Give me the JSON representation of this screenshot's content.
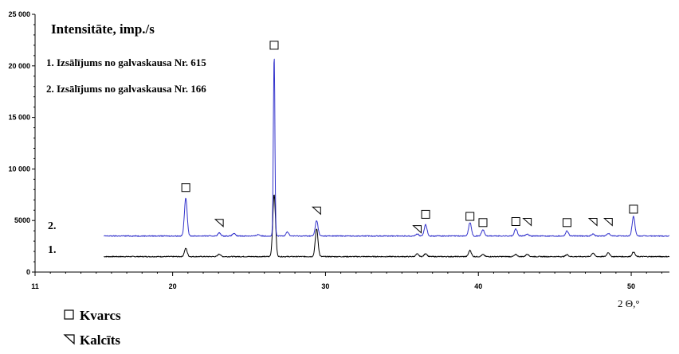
{
  "chart_data": {
    "type": "line",
    "title": "",
    "ylabel": "Intensitāte, imp./s",
    "xlabel": "2 Θ,°",
    "xlim": [
      11,
      52.5
    ],
    "ylim": [
      0,
      25000
    ],
    "x_ticks": [
      11,
      20,
      30,
      40,
      50
    ],
    "y_ticks": [
      0,
      5000,
      10000,
      15000,
      20000,
      25000
    ],
    "y_tick_labels": [
      "0",
      "5000",
      "10 000",
      "15 000",
      "20 000",
      "25 000"
    ],
    "grid": false,
    "sample_labels": [
      "1. Izsālījums no galvaskausa Nr. 615",
      "2. Izsālījums no galvaskausa Nr. 166"
    ],
    "series": [
      {
        "name": "1.",
        "color": "#000000",
        "baseline": 1500,
        "peaks": [
          {
            "x": 20.86,
            "y": 2300
          },
          {
            "x": 23.05,
            "y": 1750
          },
          {
            "x": 26.64,
            "y": 7500
          },
          {
            "x": 29.42,
            "y": 4200
          },
          {
            "x": 36.0,
            "y": 1750
          },
          {
            "x": 36.55,
            "y": 1800
          },
          {
            "x": 39.45,
            "y": 2100
          },
          {
            "x": 40.3,
            "y": 1700
          },
          {
            "x": 42.45,
            "y": 1700
          },
          {
            "x": 43.2,
            "y": 1750
          },
          {
            "x": 45.8,
            "y": 1700
          },
          {
            "x": 47.5,
            "y": 1850
          },
          {
            "x": 48.5,
            "y": 1900
          },
          {
            "x": 50.15,
            "y": 1950
          }
        ]
      },
      {
        "name": "2.",
        "color": "#3333cc",
        "baseline": 3500,
        "peaks": [
          {
            "x": 20.86,
            "y": 7200
          },
          {
            "x": 23.05,
            "y": 3800
          },
          {
            "x": 24.0,
            "y": 3750
          },
          {
            "x": 25.6,
            "y": 3650
          },
          {
            "x": 26.64,
            "y": 21000
          },
          {
            "x": 27.5,
            "y": 3900
          },
          {
            "x": 29.42,
            "y": 5000
          },
          {
            "x": 36.0,
            "y": 3700
          },
          {
            "x": 36.55,
            "y": 4600
          },
          {
            "x": 39.45,
            "y": 4800
          },
          {
            "x": 40.3,
            "y": 4100
          },
          {
            "x": 42.45,
            "y": 4200
          },
          {
            "x": 43.2,
            "y": 3700
          },
          {
            "x": 45.8,
            "y": 4000
          },
          {
            "x": 47.5,
            "y": 3700
          },
          {
            "x": 48.5,
            "y": 3750
          },
          {
            "x": 50.15,
            "y": 5400
          }
        ]
      }
    ],
    "annotations": [
      {
        "x": 20.86,
        "y": 8200,
        "marker": "square"
      },
      {
        "x": 26.64,
        "y": 22000,
        "marker": "square"
      },
      {
        "x": 23.05,
        "y": 4800,
        "marker": "triangle"
      },
      {
        "x": 29.42,
        "y": 6000,
        "marker": "triangle"
      },
      {
        "x": 36.0,
        "y": 4200,
        "marker": "triangle"
      },
      {
        "x": 36.55,
        "y": 5600,
        "marker": "square"
      },
      {
        "x": 39.45,
        "y": 5400,
        "marker": "square"
      },
      {
        "x": 40.3,
        "y": 4800,
        "marker": "square"
      },
      {
        "x": 42.45,
        "y": 4900,
        "marker": "square"
      },
      {
        "x": 43.2,
        "y": 4900,
        "marker": "triangle"
      },
      {
        "x": 45.8,
        "y": 4800,
        "marker": "square"
      },
      {
        "x": 47.5,
        "y": 4900,
        "marker": "triangle"
      },
      {
        "x": 48.5,
        "y": 4900,
        "marker": "triangle"
      },
      {
        "x": 50.15,
        "y": 6100,
        "marker": "square"
      }
    ],
    "legend": {
      "position": "bottom-left",
      "items": [
        {
          "marker": "square",
          "label": "Kvarcs"
        },
        {
          "marker": "triangle",
          "label": "Kalcīts"
        }
      ]
    }
  }
}
